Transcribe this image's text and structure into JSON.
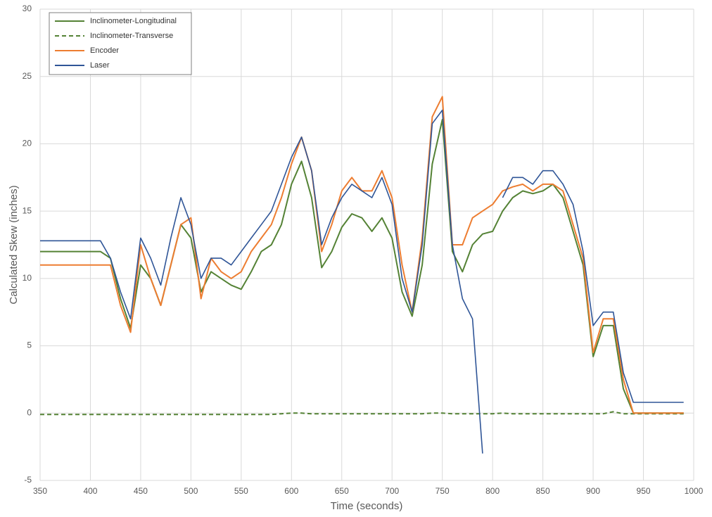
{
  "chart_data": {
    "type": "line",
    "x_label": "Time (seconds)",
    "y_label": "Calculated Skew (inches)",
    "x": [
      350,
      360,
      370,
      380,
      390,
      400,
      410,
      420,
      430,
      440,
      450,
      460,
      470,
      480,
      490,
      500,
      510,
      520,
      530,
      540,
      550,
      560,
      570,
      580,
      590,
      600,
      610,
      620,
      630,
      640,
      650,
      660,
      670,
      680,
      690,
      700,
      710,
      720,
      730,
      740,
      750,
      760,
      770,
      780,
      790,
      800,
      810,
      820,
      830,
      840,
      850,
      860,
      870,
      880,
      890,
      900,
      910,
      920,
      930,
      940,
      950,
      960,
      970,
      980,
      990
    ],
    "series": [
      {
        "name": "Inclinometer-Longitudinal",
        "color": "#548235",
        "dashed": false,
        "values": [
          12,
          12,
          12,
          12,
          12,
          12,
          12,
          11.5,
          8.5,
          6.3,
          11,
          10,
          8,
          11,
          14,
          13,
          9,
          10.5,
          10,
          9.5,
          9.2,
          10.5,
          12,
          12.5,
          14,
          17,
          18.7,
          16,
          10.8,
          12,
          13.8,
          14.8,
          14.5,
          13.5,
          14.5,
          13,
          9,
          7.2,
          11,
          18.5,
          21.8,
          12,
          10.5,
          12.5,
          13.3,
          13.5,
          15,
          16,
          16.5,
          16.3,
          16.5,
          17,
          16,
          13.5,
          11,
          4.2,
          6.5,
          6.5,
          1.8,
          0,
          0,
          0,
          0,
          0,
          0
        ]
      },
      {
        "name": "Inclinometer-Transverse",
        "color": "#548235",
        "dashed": true,
        "values": [
          -0.1,
          -0.1,
          -0.1,
          -0.1,
          -0.1,
          -0.1,
          -0.1,
          -0.1,
          -0.1,
          -0.1,
          -0.1,
          -0.1,
          -0.1,
          -0.1,
          -0.1,
          -0.1,
          -0.1,
          -0.1,
          -0.1,
          -0.1,
          -0.1,
          -0.1,
          -0.1,
          -0.1,
          -0.05,
          0,
          0,
          -0.05,
          -0.05,
          -0.05,
          -0.05,
          -0.05,
          -0.05,
          -0.05,
          -0.05,
          -0.05,
          -0.05,
          -0.05,
          -0.05,
          0,
          0,
          -0.05,
          -0.05,
          -0.05,
          -0.05,
          -0.05,
          0,
          -0.05,
          -0.05,
          -0.05,
          -0.05,
          -0.05,
          -0.05,
          -0.05,
          -0.05,
          -0.05,
          -0.05,
          0.1,
          -0.05,
          -0.05,
          -0.05,
          -0.05,
          -0.05,
          -0.05,
          -0.05
        ]
      },
      {
        "name": "Encoder",
        "color": "#ed7d31",
        "dashed": false,
        "values": [
          11,
          11,
          11,
          11,
          11,
          11,
          11,
          11,
          8,
          6,
          12.5,
          10,
          8,
          11,
          14,
          14.5,
          8.5,
          11.5,
          10.5,
          10,
          10.5,
          12,
          13,
          14,
          16,
          18.5,
          20.5,
          18,
          12,
          14,
          16.5,
          17.5,
          16.5,
          16.5,
          18,
          16,
          11,
          7.5,
          13,
          22,
          23.5,
          12.5,
          12.5,
          14.5,
          15,
          15.5,
          16.5,
          16.8,
          17,
          16.5,
          17,
          17,
          16.5,
          14,
          11.5,
          4.5,
          7,
          7,
          2.5,
          0,
          0,
          0,
          0,
          0,
          0
        ]
      },
      {
        "name": "Laser",
        "color": "#2f5597",
        "dashed": false,
        "values": [
          12.8,
          12.8,
          12.8,
          12.8,
          12.8,
          12.8,
          12.8,
          11.5,
          9,
          7,
          13,
          11.5,
          9.5,
          13,
          16,
          14,
          10,
          11.5,
          11.5,
          11,
          12,
          13,
          14,
          15,
          17,
          19,
          20.5,
          18,
          12.5,
          14.5,
          16,
          17,
          16.5,
          16,
          17.5,
          15.5,
          10,
          7.5,
          12.5,
          21.5,
          22.5,
          12.5,
          8.5,
          7,
          -3,
          null,
          16,
          17.5,
          17.5,
          17,
          18,
          18,
          17,
          15.5,
          12,
          6.5,
          7.5,
          7.5,
          3,
          0.8,
          0.8,
          0.8,
          0.8,
          0.8,
          0.8
        ]
      }
    ],
    "xlim": [
      350,
      1000
    ],
    "xticks": [
      350,
      400,
      450,
      500,
      550,
      600,
      650,
      700,
      750,
      800,
      850,
      900,
      950,
      1000
    ],
    "ylim": [
      -5,
      30
    ],
    "yticks": [
      -5,
      0,
      5,
      10,
      15,
      20,
      25,
      30
    ],
    "grid": true,
    "legend": "upper left"
  }
}
